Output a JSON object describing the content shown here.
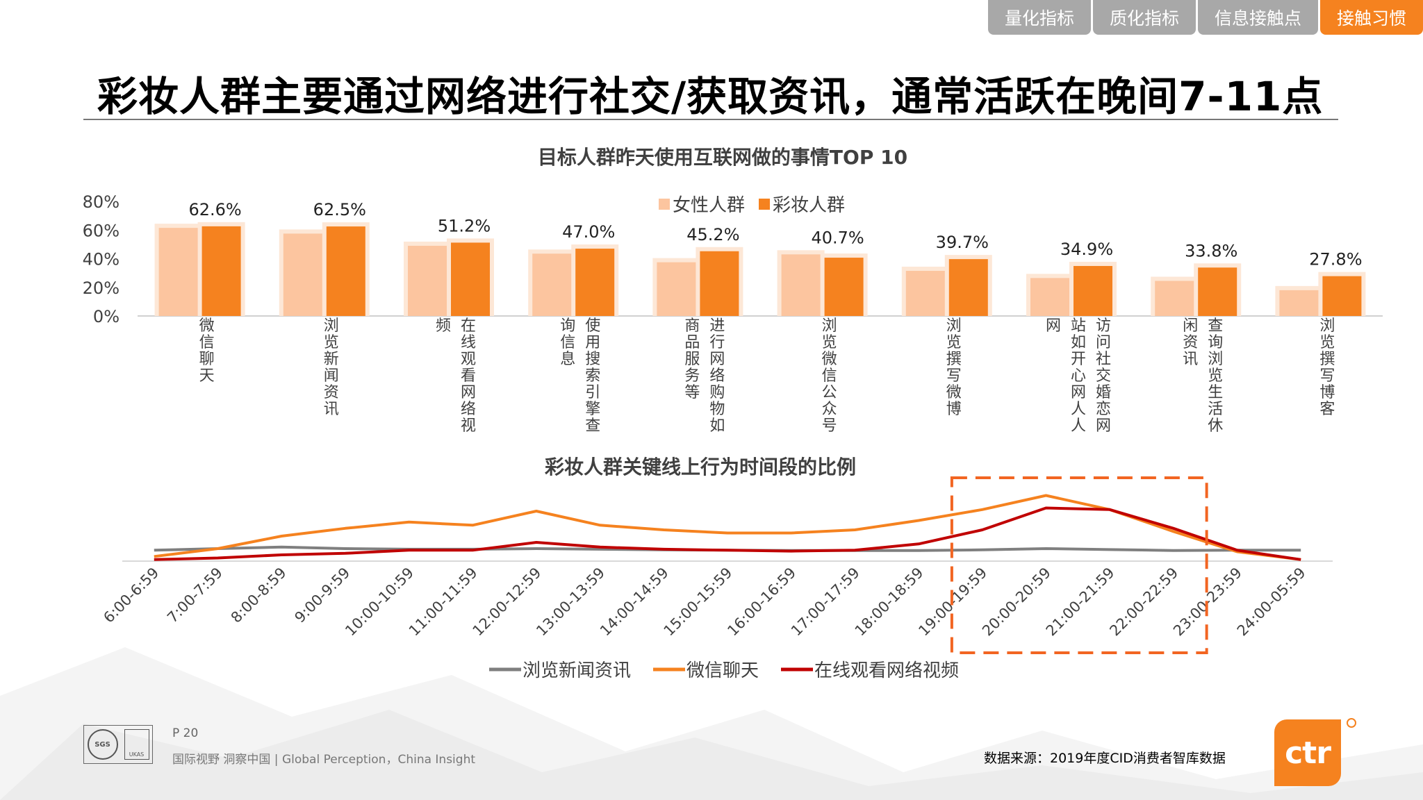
{
  "tabs": [
    {
      "label": "量化指标",
      "active": false
    },
    {
      "label": "质化指标",
      "active": false
    },
    {
      "label": "信息接触点",
      "active": false
    },
    {
      "label": "接触习惯",
      "active": true
    }
  ],
  "page_title": "彩妆人群主要通过网络进行社交/获取资讯，通常活跃在晚间7-11点",
  "colors": {
    "light_orange": "#fcc59f",
    "orange": "#f5821f",
    "gray_line": "#7f7f7f",
    "red_line": "#c00000",
    "highlight_box": "#f26522"
  },
  "chart_data": [
    {
      "type": "bar",
      "title": "目标人群昨天使用互联网做的事情TOP 10",
      "categories": [
        "微信聊天",
        "浏览新闻资讯",
        "在线观看网络视频",
        "使用搜索引擎查询信息",
        "进行网络购物如商品服务等",
        "浏览微信公众号",
        "浏览撰写微博",
        "访问社交婚恋网站如开心网人人网",
        "查询浏览生活休闲资讯",
        "浏览撰写博客"
      ],
      "category_lines": [
        [
          "微信聊天"
        ],
        [
          "浏览新闻资讯"
        ],
        [
          "在线观看网络视",
          "频"
        ],
        [
          "使用搜索引擎查",
          "询信息"
        ],
        [
          "进行网络购物如",
          "商品服务等"
        ],
        [
          "浏览微信公众号"
        ],
        [
          "浏览撰写微博"
        ],
        [
          "访问社交婚恋网",
          "站如开心网人人",
          "网"
        ],
        [
          "查询浏览生活休",
          "闲资讯"
        ],
        [
          "浏览撰写博客"
        ]
      ],
      "series": [
        {
          "name": "女性人群",
          "values": [
            61.5,
            57.5,
            49.0,
            43.5,
            37.5,
            43.0,
            31.5,
            26.5,
            24.5,
            18.0
          ]
        },
        {
          "name": "彩妆人群",
          "values": [
            62.6,
            62.5,
            51.2,
            47.0,
            45.2,
            40.7,
            39.7,
            34.9,
            33.8,
            27.8
          ]
        }
      ],
      "data_labels": [
        "62.6%",
        "62.5%",
        "51.2%",
        "47.0%",
        "45.2%",
        "40.7%",
        "39.7%",
        "34.9%",
        "33.8%",
        "27.8%"
      ],
      "yticks": [
        "0%",
        "20%",
        "40%",
        "60%",
        "80%"
      ],
      "ylim": [
        0,
        80
      ],
      "legend_position": "top-center"
    },
    {
      "type": "line",
      "title": "彩妆人群关键线上行为时间段的比例",
      "categories": [
        "6:00-6:59",
        "7:00-7:59",
        "8:00-8:59",
        "9:00-9:59",
        "10:00-10:59",
        "11:00-11:59",
        "12:00-12:59",
        "13:00-13:59",
        "14:00-14:59",
        "15:00-15:59",
        "16:00-16:59",
        "17:00-17:59",
        "18:00-18:59",
        "19:00-19:59",
        "20:00-20:59",
        "21:00-21:59",
        "22:00-22:59",
        "23:00-23:59",
        "24:00-05:59"
      ],
      "series": [
        {
          "name": "浏览新闻资讯",
          "values": [
            3.5,
            4.0,
            4.5,
            4.0,
            3.8,
            3.8,
            4.0,
            3.8,
            3.6,
            3.5,
            3.4,
            3.4,
            3.4,
            3.6,
            4.0,
            3.7,
            3.4,
            3.5,
            3.5
          ]
        },
        {
          "name": "微信聊天",
          "values": [
            1.5,
            4.0,
            8.0,
            10.5,
            12.5,
            11.5,
            16.0,
            11.5,
            10.0,
            9.0,
            9.0,
            10.0,
            13.0,
            16.5,
            21.0,
            16.5,
            9.5,
            3.0,
            0.5
          ]
        },
        {
          "name": "在线观看网络视频",
          "values": [
            0.5,
            1.0,
            2.0,
            2.5,
            3.5,
            3.5,
            6.0,
            4.5,
            3.8,
            3.5,
            3.2,
            3.5,
            5.5,
            10.0,
            17.0,
            16.5,
            10.5,
            3.5,
            0.5
          ]
        }
      ],
      "highlight_range": [
        "19:00-19:59",
        "22:00-22:59"
      ],
      "legend_position": "bottom-center"
    }
  ],
  "footer": {
    "page_number": "P 20",
    "tagline": "国际视野 洞察中国 | Global Perception，China Insight",
    "source": "数据来源：2019年度CID消费者智库数据",
    "logo_text": "ctr",
    "cert_seal": "SGS",
    "cert_ukas": "UKAS"
  }
}
